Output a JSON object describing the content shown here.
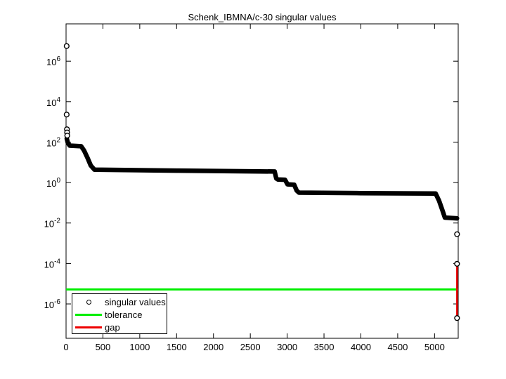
{
  "chart_data": {
    "type": "line",
    "title": "Schenk_IBMNA/c-30 singular values",
    "xlabel": "",
    "ylabel": "",
    "grid": false,
    "x_axis": {
      "lim": [
        0,
        5321
      ],
      "ticks": [
        0,
        500,
        1000,
        1500,
        2000,
        2500,
        3000,
        3500,
        4000,
        4500,
        5000
      ]
    },
    "y_axis": {
      "scale": "log",
      "lim": [
        2e-08,
        70000000.0
      ],
      "tick_exponents": [
        6,
        4,
        2,
        0,
        -2,
        -4,
        -6
      ],
      "tick_base": "10"
    },
    "colors": {
      "singular_values": "#000000",
      "tolerance": "#00ee00",
      "gap": "#ee0000",
      "marker_fill": "#ffffff"
    },
    "series": {
      "singular_values": {
        "name": "singular values",
        "dense_curve": [
          [
            10,
            150
          ],
          [
            25,
            90
          ],
          [
            50,
            67
          ],
          [
            205,
            62
          ],
          [
            245,
            38
          ],
          [
            290,
            17
          ],
          [
            335,
            7.0
          ],
          [
            385,
            4.3
          ],
          [
            1500,
            3.9
          ],
          [
            2830,
            3.5
          ],
          [
            2852,
            1.6
          ],
          [
            2875,
            1.42
          ],
          [
            2970,
            1.38
          ],
          [
            3005,
            0.82
          ],
          [
            3095,
            0.78
          ],
          [
            3130,
            0.4
          ],
          [
            3160,
            0.316
          ],
          [
            4000,
            0.3
          ],
          [
            5015,
            0.285
          ],
          [
            5060,
            0.13
          ],
          [
            5105,
            0.045
          ],
          [
            5140,
            0.0185
          ],
          [
            5305,
            0.017
          ]
        ],
        "isolated_points": [
          [
            8,
            5600000
          ],
          [
            8,
            2300
          ],
          [
            12,
            430
          ],
          [
            14,
            300
          ],
          [
            16,
            210
          ],
          [
            5305,
            0.0028
          ],
          [
            5305,
            9.6e-05
          ],
          [
            5305,
            2e-07
          ]
        ]
      },
      "tolerance": {
        "name": "tolerance",
        "value": 5.2e-06
      },
      "gap": {
        "name": "gap",
        "x": 5305,
        "from": 9.6e-05,
        "to": 2e-07
      }
    },
    "legend": {
      "position": "bottom-left",
      "items": [
        {
          "marker": "circle",
          "label": "singular values"
        },
        {
          "marker": "line-green",
          "label": "tolerance"
        },
        {
          "marker": "line-red",
          "label": "gap"
        }
      ]
    }
  }
}
